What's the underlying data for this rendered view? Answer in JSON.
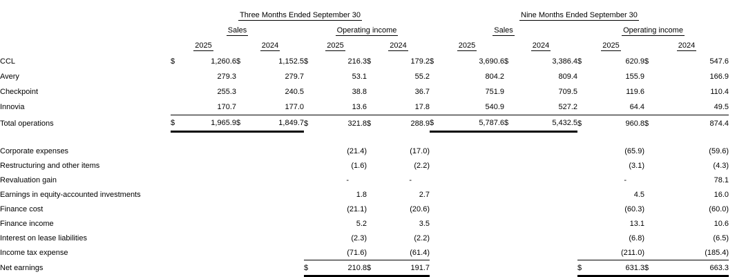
{
  "table": {
    "currency_symbol": "$",
    "sections": [
      {
        "title": "Three Months Ended September 30",
        "groups": [
          "Sales",
          "Operating income"
        ]
      },
      {
        "title": "Nine Months Ended September 30",
        "groups": [
          "Sales",
          "Operating income"
        ]
      }
    ],
    "years": [
      "2025",
      "2024",
      "2025",
      "2024",
      "2025",
      "2024",
      "2025",
      "2024"
    ],
    "segment_rows": [
      {
        "label": "CCL",
        "dollar_groups": [
          0,
          1,
          2,
          3,
          4,
          5,
          6,
          7
        ],
        "underline": "none",
        "values": [
          "1,260.6",
          "1,152.5",
          "216.3",
          "179.2",
          "3,690.6",
          "3,386.4",
          "620.9",
          "547.6"
        ]
      },
      {
        "label": "Avery",
        "dollar_groups": [],
        "underline": "none",
        "values": [
          "279.3",
          "279.7",
          "53.1",
          "55.2",
          "804.2",
          "809.4",
          "155.9",
          "166.9"
        ]
      },
      {
        "label": "Checkpoint",
        "dollar_groups": [],
        "underline": "none",
        "values": [
          "255.3",
          "240.5",
          "38.8",
          "36.7",
          "751.9",
          "709.5",
          "119.6",
          "110.4"
        ]
      },
      {
        "label": "Innovia",
        "dollar_groups": [],
        "underline": "thin-all",
        "values": [
          "170.7",
          "177.0",
          "13.6",
          "17.8",
          "540.9",
          "527.2",
          "64.4",
          "49.5"
        ]
      },
      {
        "label": "Total operations",
        "dollar_groups": [
          0,
          1,
          2,
          3,
          4,
          5,
          6,
          7
        ],
        "underline": "thick-sales",
        "values": [
          "1,965.9",
          "1,849.7",
          "321.8",
          "288.9",
          "5,787.6",
          "5,432.5",
          "960.8",
          "874.4"
        ]
      }
    ],
    "expense_rows": [
      {
        "label": "Corporate expenses",
        "dollar_groups": [],
        "underline": "none",
        "values": [
          "",
          "",
          "(21.4)",
          "(17.0)",
          "",
          "",
          "(65.9)",
          "(59.6)"
        ]
      },
      {
        "label": "Restructuring and other items",
        "dollar_groups": [],
        "underline": "none",
        "values": [
          "",
          "",
          "(1.6)",
          "(2.2)",
          "",
          "",
          "(3.1)",
          "(4.3)"
        ]
      },
      {
        "label": "Revaluation gain",
        "dollar_groups": [],
        "underline": "none",
        "values": [
          "",
          "",
          "-",
          "-",
          "",
          "",
          "-",
          "78.1"
        ]
      },
      {
        "label": "Earnings in equity-accounted investments",
        "dollar_groups": [],
        "underline": "none",
        "values": [
          "",
          "",
          "1.8",
          "2.7",
          "",
          "",
          "4.5",
          "16.0"
        ]
      },
      {
        "label": "Finance cost",
        "dollar_groups": [],
        "underline": "none",
        "values": [
          "",
          "",
          "(21.1)",
          "(20.6)",
          "",
          "",
          "(60.3)",
          "(60.0)"
        ]
      },
      {
        "label": "Finance income",
        "dollar_groups": [],
        "underline": "none",
        "values": [
          "",
          "",
          "5.2",
          "3.5",
          "",
          "",
          "13.1",
          "10.6"
        ]
      },
      {
        "label": "Interest on lease liabilities",
        "dollar_groups": [],
        "underline": "none",
        "values": [
          "",
          "",
          "(2.3)",
          "(2.2)",
          "",
          "",
          "(6.8)",
          "(6.5)"
        ]
      },
      {
        "label": "Income tax expense",
        "dollar_groups": [],
        "underline": "thin-opinc",
        "values": [
          "",
          "",
          "(71.6)",
          "(61.4)",
          "",
          "",
          "(211.0)",
          "(185.4)"
        ]
      },
      {
        "label": "Net earnings",
        "dollar_groups": [
          2,
          3,
          6,
          7
        ],
        "underline": "thick-opinc",
        "values": [
          "",
          "",
          "210.8",
          "191.7",
          "",
          "",
          "631.3",
          "663.3"
        ]
      }
    ]
  }
}
